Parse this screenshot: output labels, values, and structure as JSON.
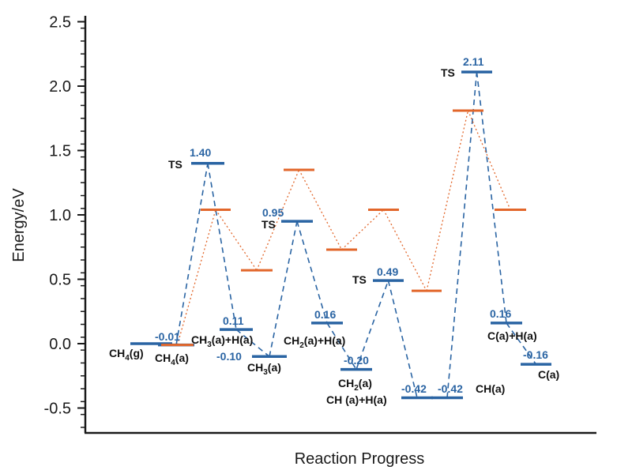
{
  "chart_data": {
    "type": "line",
    "title": "",
    "xlabel": "Reaction Progress",
    "ylabel": "Energy/eV",
    "ylim": [
      -0.7,
      2.5
    ],
    "yticks": [
      "2.5",
      "2.0",
      "1.5",
      "1.0",
      "0.5",
      "0.0",
      "-0.5"
    ],
    "grid": false,
    "legend": "none",
    "colors": {
      "blue": "#2a64a3",
      "orange": "#e2662a",
      "axis": "#1a1a1a"
    },
    "series": [
      {
        "style": "blue-dashed",
        "points": [
          {
            "state": "CH4(g)",
            "energy": 0.0
          },
          {
            "state": "CH4(a)",
            "energy": -0.01
          },
          {
            "state": "TS",
            "energy": 1.4
          },
          {
            "state": "CH3(a)+H(a)",
            "energy": 0.11
          },
          {
            "state": "CH3(a)",
            "energy": -0.1
          },
          {
            "state": "TS",
            "energy": 0.95
          },
          {
            "state": "CH2(a)+H(a)",
            "energy": 0.16
          },
          {
            "state": "CH2(a)",
            "energy": -0.2
          },
          {
            "state": "TS",
            "energy": 0.49
          },
          {
            "state": "CH(a)+H(a)",
            "energy": -0.42
          },
          {
            "state": "CH(a)",
            "energy": -0.42
          },
          {
            "state": "TS",
            "energy": 2.11
          },
          {
            "state": "C(a)+H(a)",
            "energy": 0.16
          },
          {
            "state": "C(a)",
            "energy": -0.16
          }
        ]
      },
      {
        "style": "orange-dotted",
        "points": [
          {
            "energy": -0.01
          },
          {
            "energy": 1.04
          },
          {
            "energy": 0.57
          },
          {
            "energy": 1.35
          },
          {
            "energy": 0.73
          },
          {
            "energy": 1.04
          },
          {
            "energy": 0.41
          },
          {
            "energy": 1.81
          },
          {
            "energy": 1.04
          }
        ]
      }
    ],
    "value_labels": [
      "-0.01",
      "1.40",
      "0.11",
      "-0.10",
      "0.95",
      "0.16",
      "-0.20",
      "0.49",
      "-0.42",
      "-0.42",
      "2.11",
      "0.16",
      "-0.16"
    ],
    "ts_label": "TS",
    "state_labels": {
      "ch4g": [
        "CH",
        "4",
        "(g)"
      ],
      "ch4a": [
        "CH",
        "4",
        "(a)"
      ],
      "ch3h": [
        "CH",
        "3",
        "(a)+H(a)"
      ],
      "ch3": [
        "CH",
        "3",
        "(a)"
      ],
      "ch2h": [
        "CH",
        "2",
        "(a)+H(a)"
      ],
      "ch2": [
        "CH",
        "2",
        "(a)"
      ],
      "chh": "CH (a)+H(a)",
      "ch": "CH(a)",
      "ch_h2": "C(a)+H(a)",
      "c": "C(a)"
    }
  }
}
